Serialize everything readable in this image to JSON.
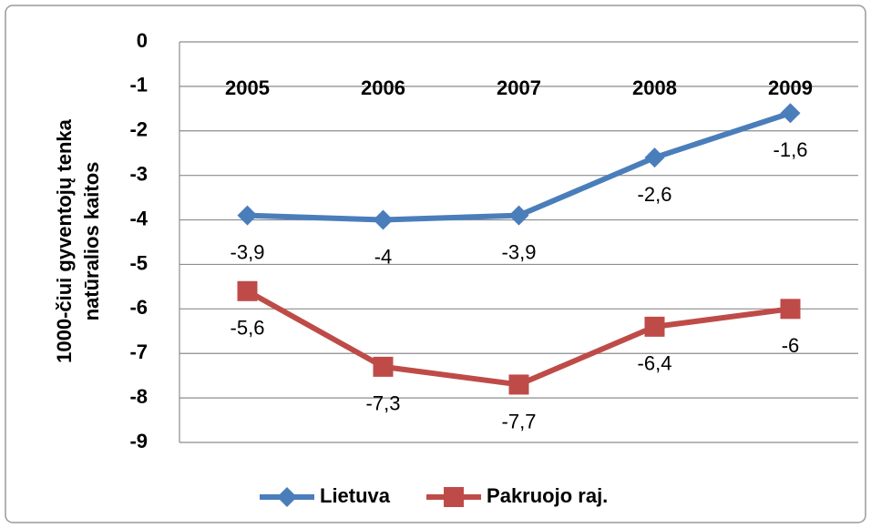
{
  "chart_data": {
    "type": "line",
    "ylabel": [
      "1000-čiui gyventojų tenka",
      "natūralios kaitos"
    ],
    "categories": [
      "2005",
      "2006",
      "2007",
      "2008",
      "2009"
    ],
    "series": [
      {
        "name": "Lietuva",
        "color": "#4a7ebb",
        "marker": "diamond",
        "values": [
          -3.9,
          -4,
          -3.9,
          -2.6,
          -1.6
        ],
        "value_labels": [
          "-3,9",
          "-4",
          "-3,9",
          "-2,6",
          "-1,6"
        ]
      },
      {
        "name": "Pakruojo raj.",
        "color": "#be4b48",
        "marker": "square",
        "values": [
          -5.6,
          -7.3,
          -7.7,
          -6.4,
          -6
        ],
        "value_labels": [
          "-5,6",
          "-7,3",
          "-7,7",
          "-6,4",
          "-6"
        ]
      }
    ],
    "ylim": [
      -9,
      0
    ],
    "yticks": [
      0,
      -1,
      -2,
      -3,
      -4,
      -5,
      -6,
      -7,
      -8,
      -9
    ],
    "grid": true,
    "legend": "bottom"
  }
}
